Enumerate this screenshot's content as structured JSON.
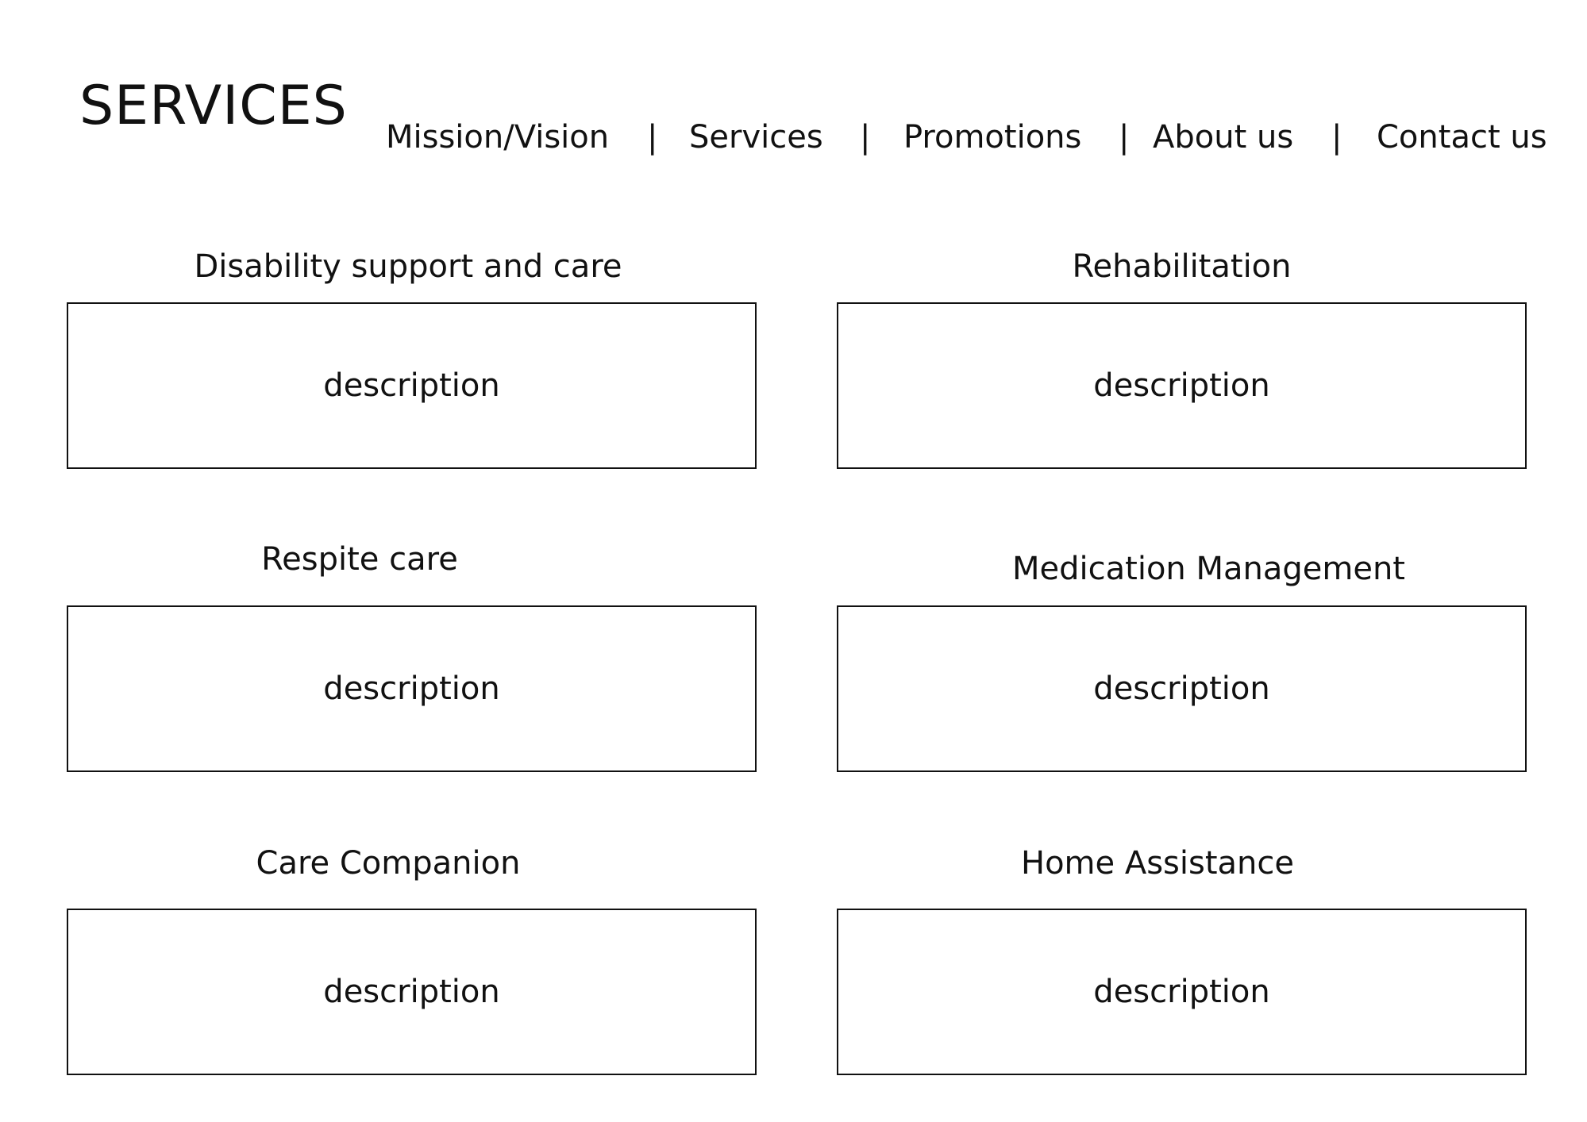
{
  "header": {
    "title": "SERVICES"
  },
  "nav": {
    "items": [
      {
        "label": "Mission/Vision"
      },
      {
        "label": "Services"
      },
      {
        "label": "Promotions"
      },
      {
        "label": "About us"
      },
      {
        "label": "Contact us"
      }
    ],
    "separator": "|"
  },
  "services": [
    {
      "title": "Disability support and care",
      "description": "description"
    },
    {
      "title": "Rehabilitation",
      "description": "description"
    },
    {
      "title": "Respite care",
      "description": "description"
    },
    {
      "title": "Medication Management",
      "description": "description"
    },
    {
      "title": "Care Companion",
      "description": "description"
    },
    {
      "title": "Home Assistance",
      "description": "description"
    }
  ]
}
